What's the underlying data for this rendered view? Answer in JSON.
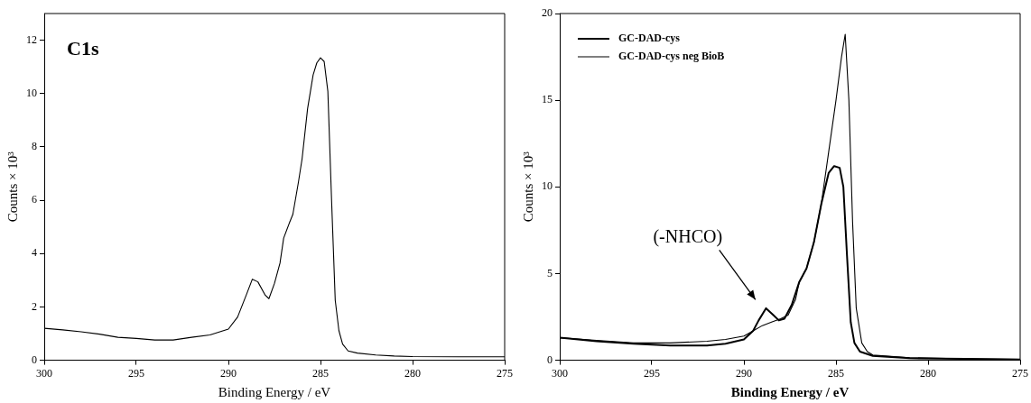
{
  "chart_data": [
    {
      "type": "line",
      "xlabel": "Binding Energy / eV",
      "ylabel": "Counts × 10³",
      "annotations": [
        "C1s"
      ],
      "x": [
        300,
        299,
        298,
        297,
        296,
        295,
        294,
        293,
        292,
        291,
        290,
        289.5,
        289,
        288.7,
        288.4,
        288,
        287.8,
        287.5,
        287.2,
        287,
        286.7,
        286.5,
        286.2,
        286,
        285.7,
        285.4,
        285.2,
        285,
        284.8,
        284.6,
        284.4,
        284.2,
        284,
        283.8,
        283.5,
        283,
        282,
        281,
        280,
        277.5,
        275
      ],
      "series": [
        {
          "color": "#000000",
          "values": [
            1.2,
            1.14,
            1.07,
            0.98,
            0.86,
            0.82,
            0.76,
            0.76,
            0.86,
            0.95,
            1.17,
            1.62,
            2.5,
            3.04,
            2.94,
            2.44,
            2.31,
            2.88,
            3.64,
            4.58,
            5.13,
            5.47,
            6.67,
            7.55,
            9.44,
            10.7,
            11.15,
            11.34,
            11.2,
            10.08,
            6.04,
            2.25,
            1.11,
            0.61,
            0.35,
            0.27,
            0.2,
            0.16,
            0.14,
            0.13,
            0.13
          ]
        }
      ],
      "xlim": [
        300,
        275
      ],
      "xticks": [
        300,
        295,
        290,
        285,
        280,
        275
      ],
      "ylim": [
        0,
        13
      ],
      "yticks": [
        0,
        2,
        4,
        6,
        8,
        10,
        12
      ],
      "grid": false,
      "legend": false,
      "marker": "none",
      "line_style": "solid"
    },
    {
      "type": "line",
      "xlabel": "Binding Energy / eV",
      "ylabel": "Counts × 10³",
      "annotations": [
        "(-NHCO)"
      ],
      "series": [
        {
          "name": "GC-DAD-cys",
          "color": "#000000",
          "x": [
            300,
            298,
            296,
            294,
            292,
            291,
            290,
            289.5,
            289.2,
            288.8,
            288.4,
            288.1,
            287.8,
            287.4,
            287,
            286.6,
            286.2,
            285.8,
            285.4,
            285.1,
            284.8,
            284.6,
            284.4,
            284.2,
            284,
            283.7,
            283,
            281,
            278,
            275
          ],
          "values": [
            1.3,
            1.1,
            0.95,
            0.85,
            0.85,
            0.95,
            1.2,
            1.7,
            2.3,
            3.0,
            2.6,
            2.3,
            2.4,
            3.2,
            4.5,
            5.3,
            6.8,
            9.0,
            10.8,
            11.2,
            11.1,
            10.0,
            6.0,
            2.2,
            1.0,
            0.5,
            0.25,
            0.12,
            0.08,
            0.05
          ]
        },
        {
          "name": "GC-DAD-cys neg BioB",
          "color": "#000000",
          "x": [
            300,
            298,
            296,
            294,
            292,
            291,
            290,
            289.5,
            289,
            288.5,
            288,
            287.6,
            287.2,
            287,
            286.6,
            286.2,
            285.8,
            285.4,
            285,
            284.7,
            284.5,
            284.3,
            284.1,
            283.9,
            283.6,
            283.3,
            283,
            281,
            278,
            275
          ],
          "values": [
            1.3,
            1.15,
            1.0,
            1.0,
            1.1,
            1.2,
            1.4,
            1.7,
            2.0,
            2.2,
            2.4,
            2.6,
            3.5,
            4.5,
            5.3,
            6.8,
            9.0,
            12.0,
            15.0,
            17.5,
            18.8,
            15.0,
            8.0,
            3.0,
            1.0,
            0.5,
            0.3,
            0.15,
            0.08,
            0.05
          ]
        }
      ],
      "xlim": [
        300,
        275
      ],
      "xticks": [
        300,
        295,
        290,
        285,
        280,
        275
      ],
      "ylim": [
        0,
        20
      ],
      "yticks": [
        0,
        5,
        10,
        15,
        20
      ],
      "grid": false,
      "legend": "top left",
      "marker": "none",
      "line_style": "solid"
    }
  ]
}
